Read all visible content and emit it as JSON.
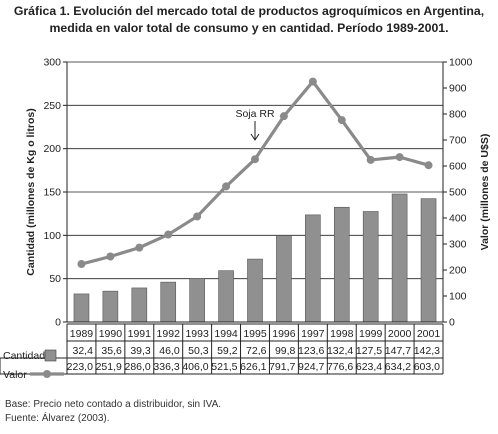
{
  "title_line1": "Gráfica 1. Evolución del mercado total de productos agroquímicos en Argentina,",
  "title_line2": "medida en valor total de consumo y en cantidad. Período 1989-2001.",
  "footnote1": "Base: Precio neto contado a distribuidor, sin IVA.",
  "footnote2": "Fuente: Álvarez (2003).",
  "colors": {
    "bars": "#909090",
    "line": "#8a8a8a",
    "grid": "#222222",
    "text": "#222222"
  },
  "chart_data": {
    "type": "bar",
    "categories": [
      "1989",
      "1990",
      "1991",
      "1992",
      "1993",
      "1994",
      "1995",
      "1996",
      "1997",
      "1998",
      "1999",
      "2000",
      "2001"
    ],
    "series": [
      {
        "name": "Cantidad",
        "type": "bar",
        "axis": "left",
        "values": [
          32.4,
          35.6,
          39.3,
          46.0,
          50.3,
          59.2,
          72.6,
          99.8,
          123.6,
          132.4,
          127.5,
          147.7,
          142.3
        ],
        "labels": [
          "32,4",
          "35,6",
          "39,3",
          "46,0",
          "50,3",
          "59,2",
          "72,6",
          "99,8",
          "123,6",
          "132,4",
          "127,5",
          "147,7",
          "142,3"
        ]
      },
      {
        "name": "Valor",
        "type": "line",
        "axis": "right",
        "values": [
          223.0,
          251.9,
          286.0,
          336.3,
          406.0,
          521.5,
          626.1,
          791.7,
          924.7,
          776.6,
          623.4,
          634.2,
          603.0
        ],
        "labels": [
          "223,0",
          "251,9",
          "286,0",
          "336,3",
          "406,0",
          "521,5",
          "626,1",
          "791,7",
          "924,7",
          "776,6",
          "623,4",
          "634,2",
          "603,0"
        ]
      }
    ],
    "ylabel_left": "Cantidad (millones de Kg o litros)",
    "ylabel_right": "Valor (millones de U$S)",
    "ylim_left": [
      0,
      300
    ],
    "ylim_right": [
      0,
      1000
    ],
    "yticks_left": [
      0,
      50,
      100,
      150,
      200,
      250,
      300
    ],
    "yticks_right": [
      0,
      100,
      200,
      300,
      400,
      500,
      600,
      700,
      800,
      900,
      1000
    ],
    "gridlines": true,
    "annotation": {
      "text": "Soja RR",
      "category": "1995"
    }
  }
}
